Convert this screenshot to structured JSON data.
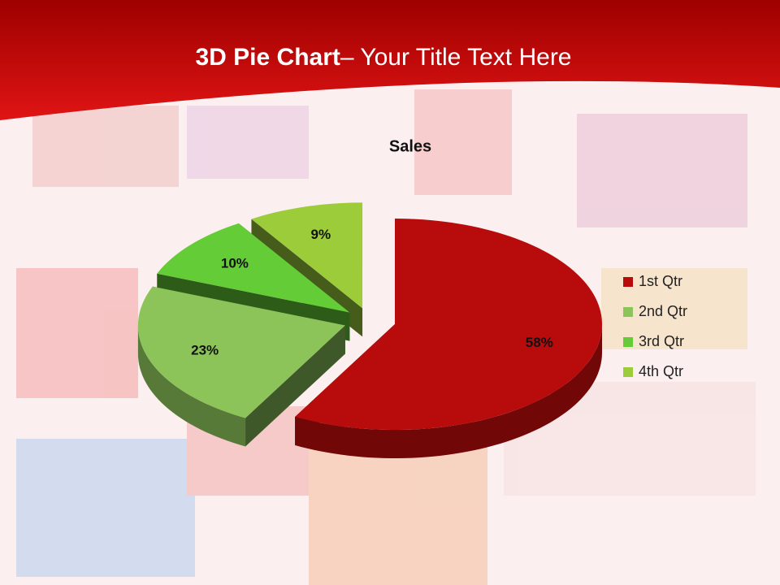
{
  "slide": {
    "title_bold": "3D Pie Chart",
    "title_rest": "– Your Title Text Here"
  },
  "chart_data": {
    "type": "pie",
    "title": "Sales",
    "categories": [
      "1st Qtr",
      "2nd Qtr",
      "3rd Qtr",
      "4th Qtr"
    ],
    "values": [
      58,
      23,
      10,
      9
    ],
    "value_labels": [
      "58%",
      "23%",
      "10%",
      "9%"
    ],
    "colors": [
      "#b80b0b",
      "#8cc45a",
      "#64cc36",
      "#9ccc3a"
    ],
    "legend": "right"
  }
}
